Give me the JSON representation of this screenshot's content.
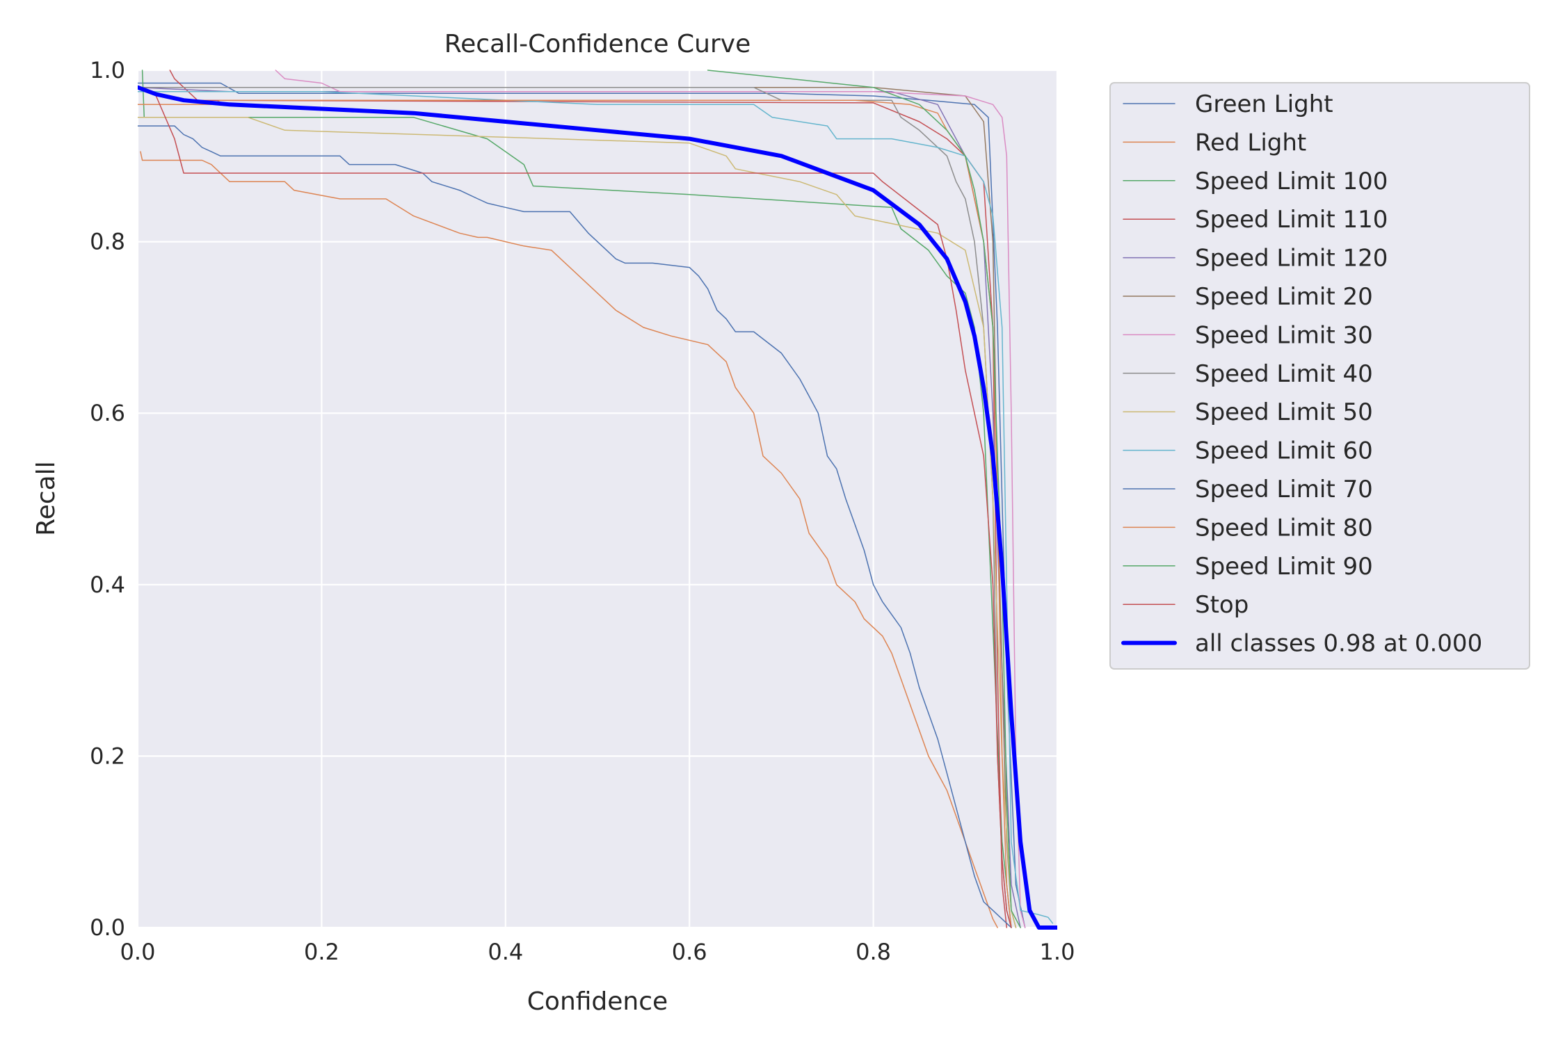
{
  "chart_data": {
    "type": "line",
    "title": "Recall-Confidence Curve",
    "xlabel": "Confidence",
    "ylabel": "Recall",
    "xlim": [
      0,
      1
    ],
    "ylim": [
      0,
      1
    ],
    "xticks": [
      "0.0",
      "0.2",
      "0.4",
      "0.6",
      "0.8",
      "1.0"
    ],
    "yticks": [
      "0.0",
      "0.2",
      "0.4",
      "0.6",
      "0.8",
      "1.0"
    ],
    "grid": true,
    "legend": "outside-right",
    "series": [
      {
        "name": "Green Light",
        "color": "#4C72B0",
        "width": 1.5,
        "x": [
          0,
          0.09,
          0.11,
          0.7,
          0.8,
          0.86,
          0.91,
          0.925,
          0.935,
          0.945,
          0.955,
          0.965
        ],
        "y": [
          0.985,
          0.985,
          0.973,
          0.973,
          0.97,
          0.965,
          0.96,
          0.945,
          0.7,
          0.3,
          0.05,
          0
        ]
      },
      {
        "name": "Red Light",
        "color": "#DD8452",
        "width": 1.5,
        "x": [
          0.003,
          0.005,
          0.07,
          0.08,
          0.1,
          0.16,
          0.17,
          0.22,
          0.27,
          0.3,
          0.35,
          0.37,
          0.38,
          0.4,
          0.42,
          0.45,
          0.47,
          0.5,
          0.52,
          0.55,
          0.58,
          0.62,
          0.64,
          0.65,
          0.67,
          0.68,
          0.7,
          0.72,
          0.73,
          0.75,
          0.76,
          0.78,
          0.79,
          0.81,
          0.82,
          0.83,
          0.84,
          0.85,
          0.86,
          0.87,
          0.88,
          0.89,
          0.9,
          0.91,
          0.92,
          0.93,
          0.935
        ],
        "y": [
          0.905,
          0.895,
          0.895,
          0.89,
          0.87,
          0.87,
          0.86,
          0.85,
          0.85,
          0.83,
          0.81,
          0.805,
          0.805,
          0.8,
          0.795,
          0.79,
          0.77,
          0.74,
          0.72,
          0.7,
          0.69,
          0.68,
          0.66,
          0.63,
          0.6,
          0.55,
          0.53,
          0.5,
          0.46,
          0.43,
          0.4,
          0.38,
          0.36,
          0.34,
          0.32,
          0.29,
          0.26,
          0.23,
          0.2,
          0.18,
          0.16,
          0.13,
          0.1,
          0.07,
          0.04,
          0.01,
          0
        ]
      },
      {
        "name": "Speed Limit 100",
        "color": "#55A868",
        "width": 1.5,
        "x": [
          0.005,
          0.007,
          0.3,
          0.38,
          0.42,
          0.43,
          0.6,
          0.82,
          0.83,
          0.86,
          0.88,
          0.9,
          0.91,
          0.92,
          0.93,
          0.94,
          0.95
        ],
        "y": [
          1.0,
          0.945,
          0.945,
          0.92,
          0.89,
          0.865,
          0.855,
          0.84,
          0.815,
          0.79,
          0.76,
          0.74,
          0.7,
          0.6,
          0.35,
          0.1,
          0
        ]
      },
      {
        "name": "Speed Limit 110",
        "color": "#C44E52",
        "width": 1.5,
        "x": [
          0.035,
          0.04,
          0.065,
          0.8,
          0.85,
          0.88,
          0.9,
          0.92,
          0.93,
          0.935,
          0.94,
          0.945
        ],
        "y": [
          1.0,
          0.99,
          0.965,
          0.962,
          0.94,
          0.92,
          0.9,
          0.87,
          0.7,
          0.3,
          0.05,
          0
        ]
      },
      {
        "name": "Speed Limit 120",
        "color": "#8172B3",
        "width": 1.5,
        "x": [
          0,
          0.1,
          0.82,
          0.87,
          0.9,
          0.92,
          0.93,
          0.94,
          0.95,
          0.96
        ],
        "y": [
          0.98,
          0.975,
          0.975,
          0.96,
          0.9,
          0.8,
          0.6,
          0.3,
          0.05,
          0
        ]
      },
      {
        "name": "Speed Limit 20",
        "color": "#937860",
        "width": 1.5,
        "x": [
          0,
          0.8,
          0.9,
          0.92,
          0.93,
          0.935,
          0.94,
          0.945,
          0.95,
          0.955
        ],
        "y": [
          0.98,
          0.98,
          0.97,
          0.94,
          0.8,
          0.5,
          0.3,
          0.1,
          0.02,
          0
        ]
      },
      {
        "name": "Speed Limit 30",
        "color": "#DA8BC3",
        "width": 1.5,
        "x": [
          0.15,
          0.16,
          0.2,
          0.22,
          0.8,
          0.9,
          0.93,
          0.94,
          0.945,
          0.95,
          0.955,
          0.96,
          0.965
        ],
        "y": [
          1.0,
          0.99,
          0.985,
          0.975,
          0.975,
          0.97,
          0.96,
          0.945,
          0.9,
          0.6,
          0.2,
          0.02,
          0
        ]
      },
      {
        "name": "Speed Limit 40",
        "color": "#8C8C8C",
        "width": 1.5,
        "x": [
          0,
          0.67,
          0.7,
          0.82,
          0.83,
          0.85,
          0.88,
          0.89,
          0.9,
          0.91,
          0.92,
          0.93,
          0.935,
          0.94,
          0.945,
          0.95
        ],
        "y": [
          0.98,
          0.98,
          0.965,
          0.965,
          0.945,
          0.93,
          0.9,
          0.87,
          0.85,
          0.8,
          0.7,
          0.5,
          0.2,
          0.08,
          0.02,
          0
        ]
      },
      {
        "name": "Speed Limit 50",
        "color": "#CCB974",
        "width": 1.5,
        "x": [
          0,
          0.12,
          0.16,
          0.6,
          0.64,
          0.65,
          0.72,
          0.76,
          0.78,
          0.87,
          0.9,
          0.92,
          0.93,
          0.94,
          0.95,
          0.955
        ],
        "y": [
          0.945,
          0.945,
          0.93,
          0.915,
          0.9,
          0.885,
          0.87,
          0.855,
          0.83,
          0.81,
          0.79,
          0.7,
          0.5,
          0.2,
          0.02,
          0
        ]
      },
      {
        "name": "Speed Limit 60",
        "color": "#64B5CD",
        "width": 1.5,
        "x": [
          0,
          0.2,
          0.5,
          0.67,
          0.69,
          0.75,
          0.76,
          0.82,
          0.87,
          0.9,
          0.92,
          0.93,
          0.94,
          0.945,
          0.95,
          0.96,
          0.98,
          0.99,
          0.995
        ],
        "y": [
          0.975,
          0.975,
          0.96,
          0.96,
          0.945,
          0.935,
          0.92,
          0.92,
          0.91,
          0.9,
          0.87,
          0.83,
          0.7,
          0.4,
          0.1,
          0.02,
          0.015,
          0.012,
          0.005
        ]
      },
      {
        "name": "Speed Limit 70",
        "color": "#4C72B0",
        "width": 1.5,
        "x": [
          0,
          0.04,
          0.05,
          0.06,
          0.07,
          0.08,
          0.09,
          0.1,
          0.22,
          0.23,
          0.28,
          0.31,
          0.32,
          0.35,
          0.36,
          0.37,
          0.38,
          0.4,
          0.42,
          0.47,
          0.49,
          0.51,
          0.52,
          0.53,
          0.56,
          0.6,
          0.61,
          0.62,
          0.63,
          0.64,
          0.65,
          0.67,
          0.7,
          0.72,
          0.73,
          0.74,
          0.75,
          0.76,
          0.77,
          0.78,
          0.79,
          0.8,
          0.81,
          0.83,
          0.84,
          0.85,
          0.86,
          0.87,
          0.88,
          0.89,
          0.9,
          0.91,
          0.92,
          0.93,
          0.94,
          0.95
        ],
        "y": [
          0.935,
          0.935,
          0.925,
          0.92,
          0.91,
          0.905,
          0.9,
          0.9,
          0.9,
          0.89,
          0.89,
          0.88,
          0.87,
          0.86,
          0.855,
          0.85,
          0.845,
          0.84,
          0.835,
          0.835,
          0.81,
          0.79,
          0.78,
          0.775,
          0.775,
          0.77,
          0.76,
          0.745,
          0.72,
          0.71,
          0.695,
          0.695,
          0.67,
          0.64,
          0.62,
          0.6,
          0.55,
          0.535,
          0.5,
          0.47,
          0.44,
          0.4,
          0.38,
          0.35,
          0.32,
          0.28,
          0.25,
          0.22,
          0.18,
          0.14,
          0.1,
          0.06,
          0.03,
          0.02,
          0.01,
          0
        ]
      },
      {
        "name": "Speed Limit 80",
        "color": "#DD8452",
        "width": 1.5,
        "x": [
          0,
          0.08,
          0.09,
          0.78,
          0.84,
          0.87,
          0.88,
          0.9,
          0.91,
          0.92,
          0.93,
          0.935,
          0.94,
          0.945,
          0.95
        ],
        "y": [
          0.96,
          0.96,
          0.965,
          0.965,
          0.96,
          0.95,
          0.93,
          0.9,
          0.85,
          0.8,
          0.7,
          0.5,
          0.2,
          0.05,
          0
        ]
      },
      {
        "name": "Speed Limit 90",
        "color": "#55A868",
        "width": 1.5,
        "x": [
          0.62,
          0.8,
          0.85,
          0.88,
          0.9,
          0.91,
          0.92,
          0.93,
          0.94,
          0.945,
          0.95,
          0.96
        ],
        "y": [
          1.0,
          0.98,
          0.96,
          0.93,
          0.9,
          0.86,
          0.8,
          0.7,
          0.4,
          0.15,
          0.02,
          0
        ]
      },
      {
        "name": "Stop",
        "color": "#C44E52",
        "width": 1.5,
        "x": [
          0.02,
          0.04,
          0.05,
          0.8,
          0.81,
          0.87,
          0.88,
          0.89,
          0.9,
          0.91,
          0.92,
          0.93,
          0.935,
          0.94,
          0.945,
          0.95
        ],
        "y": [
          0.97,
          0.92,
          0.88,
          0.88,
          0.87,
          0.82,
          0.78,
          0.72,
          0.65,
          0.6,
          0.55,
          0.4,
          0.2,
          0.08,
          0.02,
          0
        ]
      },
      {
        "name": "all classes 0.98 at 0.000",
        "color": "#0000FF",
        "width": 6,
        "x": [
          0,
          0.02,
          0.05,
          0.1,
          0.2,
          0.3,
          0.4,
          0.5,
          0.6,
          0.7,
          0.8,
          0.85,
          0.88,
          0.9,
          0.91,
          0.92,
          0.93,
          0.94,
          0.95,
          0.96,
          0.97,
          0.98,
          1.0
        ],
        "y": [
          0.98,
          0.972,
          0.965,
          0.96,
          0.955,
          0.95,
          0.94,
          0.93,
          0.92,
          0.9,
          0.86,
          0.82,
          0.78,
          0.73,
          0.69,
          0.63,
          0.55,
          0.42,
          0.25,
          0.1,
          0.02,
          0,
          0
        ]
      }
    ]
  }
}
